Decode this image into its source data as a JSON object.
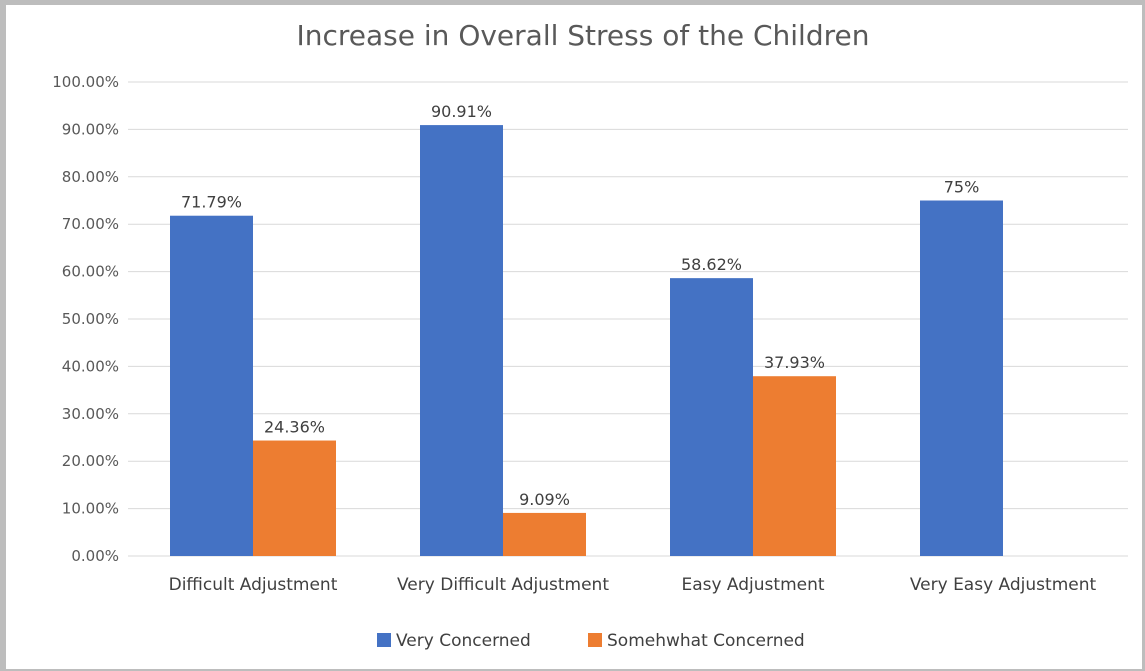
{
  "chart_data": {
    "type": "bar",
    "title": "Increase in Overall Stress of the Children",
    "categories": [
      "Difficult Adjustment",
      "Very Difficult Adjustment",
      "Easy Adjustment",
      "Very Easy Adjustment"
    ],
    "series": [
      {
        "name": "Very Concerned",
        "color": "#4472c4",
        "values": [
          71.79,
          90.91,
          58.62,
          75
        ],
        "labels": [
          "71.79%",
          "90.91%",
          "58.62%",
          "75%"
        ]
      },
      {
        "name": "Somehwhat Concerned",
        "color": "#ed7d31",
        "values": [
          24.36,
          9.09,
          37.93,
          null
        ],
        "labels": [
          "24.36%",
          "9.09%",
          "37.93%",
          null
        ]
      }
    ],
    "ylim": [
      0,
      100
    ],
    "yticks": [
      "0.00%",
      "10.00%",
      "20.00%",
      "30.00%",
      "40.00%",
      "50.00%",
      "60.00%",
      "70.00%",
      "80.00%",
      "90.00%",
      "100.00%"
    ],
    "grid": true,
    "legend_position": "bottom"
  }
}
